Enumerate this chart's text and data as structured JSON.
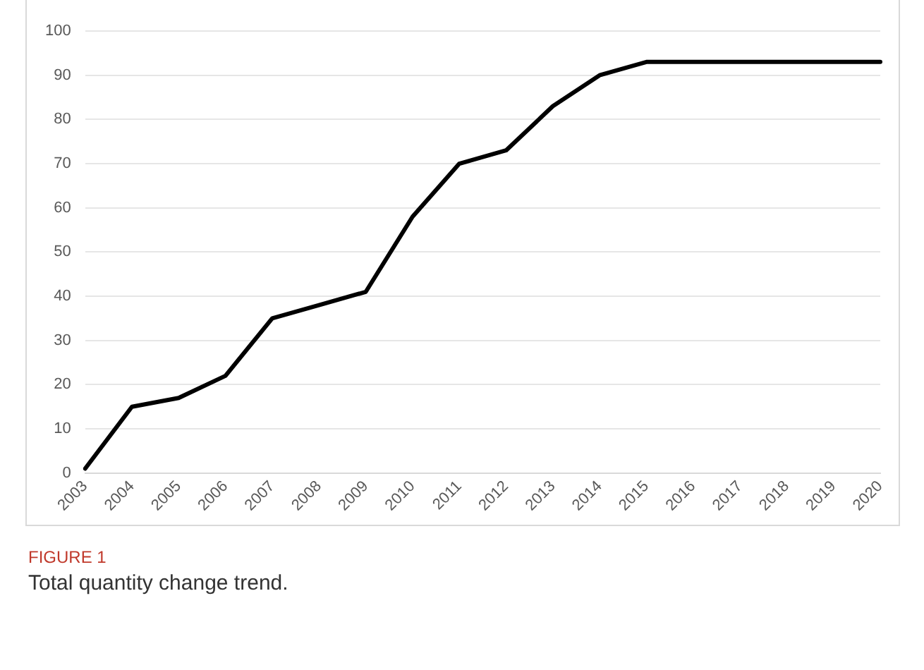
{
  "chart_data": {
    "type": "line",
    "categories": [
      "2003",
      "2004",
      "2005",
      "2006",
      "2007",
      "2008",
      "2009",
      "2010",
      "2011",
      "2012",
      "2013",
      "2014",
      "2015",
      "2016",
      "2017",
      "2018",
      "2019",
      "2020"
    ],
    "series": [
      {
        "color": "#000000",
        "values": [
          1,
          15,
          17,
          22,
          35,
          38,
          41,
          58,
          70,
          73,
          83,
          90,
          93,
          93,
          93,
          93,
          93,
          93
        ]
      }
    ],
    "ylim": [
      0,
      100
    ],
    "yticks": [
      0,
      10,
      20,
      30,
      40,
      50,
      60,
      70,
      80,
      90,
      100
    ],
    "grid": "y",
    "legend": false,
    "marker": "none",
    "line_style": "solid",
    "annotations": [
      "FIGURE 1",
      "Total quantity change trend."
    ]
  }
}
